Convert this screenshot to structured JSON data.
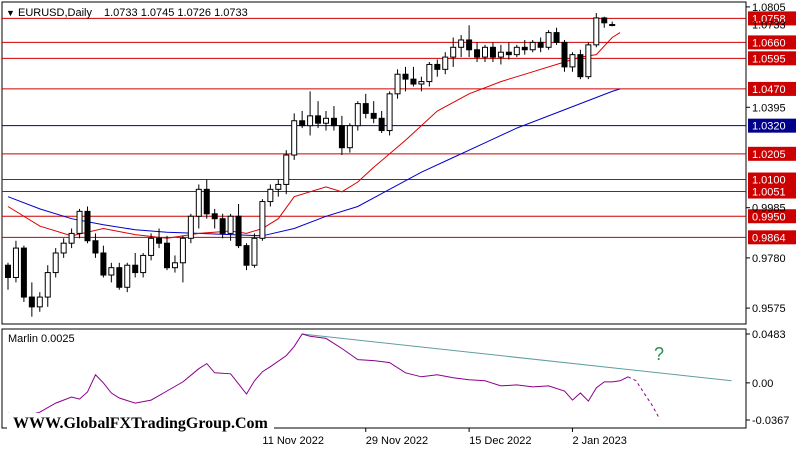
{
  "header": {
    "symbol": "EURUSD,Daily",
    "ohlc": "1.0733 1.0745 1.0726 1.0733"
  },
  "watermark": "WWW.GlobalFXTradingGroup.Com",
  "indicator": {
    "label": "Marlin 0.0025",
    "question_mark": "?",
    "y_ticks": [
      "0.0483",
      "0.00",
      "-0.0367"
    ],
    "range": [
      -0.0367,
      0.0483
    ]
  },
  "colors": {
    "background": "#ffffff",
    "bull_candle": "#ffffff",
    "bear_candle": "#000000",
    "red_level": "#cc0000",
    "blue_level": "#00008b",
    "ma_fast": "#dd0000",
    "ma_slow": "#0000cc",
    "marlin": "#8b008b",
    "trendline": "#5f9ea0",
    "question_mark": "#2e8b57"
  },
  "chart_data": {
    "type": "candlestick",
    "ylim": [
      0.951,
      1.0825
    ],
    "y_ticks": [
      "1.0805",
      "1.0395",
      "0.9985",
      "0.9780",
      "0.9575"
    ],
    "x_ticks": [
      "11 Nov 2022",
      "29 Nov 2022",
      "15 Dec 2022",
      "2 Jan 2023"
    ],
    "x_tick_index": [
      32,
      45,
      58,
      71
    ],
    "levels": [
      {
        "price": 1.0758,
        "label": "1.0758",
        "color": "red"
      },
      {
        "price": 1.066,
        "label": "1.0660",
        "color": "red"
      },
      {
        "price": 1.0595,
        "label": "1.0595",
        "color": "red"
      },
      {
        "price": 1.047,
        "label": "1.0470",
        "color": "red"
      },
      {
        "price": 1.032,
        "label": "1.0320",
        "color": "blue"
      },
      {
        "price": 1.0205,
        "label": "1.0205",
        "color": "red"
      },
      {
        "price": 1.01,
        "label": "1.0100",
        "color": "red"
      },
      {
        "price": 1.0051,
        "label": "1.0051",
        "color": "red"
      },
      {
        "price": 0.995,
        "label": "0.9950",
        "color": "red"
      },
      {
        "price": 0.9864,
        "label": "0.9864",
        "color": "red"
      }
    ],
    "current_price": "1.0733",
    "candles": [
      [
        0.975,
        0.976,
        0.965,
        0.97
      ],
      [
        0.97,
        0.985,
        0.968,
        0.982
      ],
      [
        0.982,
        0.983,
        0.96,
        0.962
      ],
      [
        0.962,
        0.968,
        0.954,
        0.958
      ],
      [
        0.958,
        0.964,
        0.956,
        0.962
      ],
      [
        0.962,
        0.975,
        0.958,
        0.972
      ],
      [
        0.972,
        0.982,
        0.97,
        0.98
      ],
      [
        0.98,
        0.986,
        0.978,
        0.984
      ],
      [
        0.984,
        0.99,
        0.982,
        0.988
      ],
      [
        0.988,
        0.998,
        0.986,
        0.997
      ],
      [
        0.997,
        0.999,
        0.984,
        0.985
      ],
      [
        0.985,
        0.988,
        0.978,
        0.98
      ],
      [
        0.98,
        0.983,
        0.97,
        0.971
      ],
      [
        0.971,
        0.976,
        0.968,
        0.974
      ],
      [
        0.974,
        0.976,
        0.965,
        0.966
      ],
      [
        0.966,
        0.976,
        0.964,
        0.975
      ],
      [
        0.975,
        0.98,
        0.97,
        0.972
      ],
      [
        0.972,
        0.98,
        0.97,
        0.979
      ],
      [
        0.979,
        0.988,
        0.977,
        0.986
      ],
      [
        0.986,
        0.99,
        0.982,
        0.984
      ],
      [
        0.984,
        0.987,
        0.973,
        0.974
      ],
      [
        0.974,
        0.979,
        0.972,
        0.976
      ],
      [
        0.976,
        0.987,
        0.968,
        0.986
      ],
      [
        0.986,
        0.996,
        0.984,
        0.995
      ],
      [
        0.995,
        1.008,
        0.99,
        1.006
      ],
      [
        1.006,
        1.01,
        0.994,
        0.996
      ],
      [
        0.996,
        0.998,
        0.99,
        0.994
      ],
      [
        0.994,
        0.996,
        0.986,
        0.988
      ],
      [
        0.988,
        0.996,
        0.985,
        0.995
      ],
      [
        0.995,
        1.0,
        0.982,
        0.983
      ],
      [
        0.983,
        0.984,
        0.973,
        0.975
      ],
      [
        0.975,
        0.988,
        0.974,
        0.986
      ],
      [
        0.986,
        1.002,
        0.985,
        1.001
      ],
      [
        1.001,
        1.008,
        0.999,
        1.006
      ],
      [
        1.006,
        1.01,
        1.003,
        1.008
      ],
      [
        1.008,
        1.022,
        1.004,
        1.02
      ],
      [
        1.02,
        1.037,
        1.018,
        1.034
      ],
      [
        1.034,
        1.038,
        1.031,
        1.032
      ],
      [
        1.032,
        1.046,
        1.028,
        1.036
      ],
      [
        1.036,
        1.042,
        1.031,
        1.033
      ],
      [
        1.033,
        1.038,
        1.03,
        1.035
      ],
      [
        1.035,
        1.04,
        1.03,
        1.032
      ],
      [
        1.032,
        1.036,
        1.02,
        1.023
      ],
      [
        1.023,
        1.033,
        1.021,
        1.032
      ],
      [
        1.032,
        1.042,
        1.03,
        1.041
      ],
      [
        1.041,
        1.045,
        1.035,
        1.037
      ],
      [
        1.037,
        1.042,
        1.033,
        1.035
      ],
      [
        1.035,
        1.038,
        1.029,
        1.03
      ],
      [
        1.03,
        1.046,
        1.028,
        1.045
      ],
      [
        1.045,
        1.055,
        1.043,
        1.053
      ],
      [
        1.053,
        1.056,
        1.046,
        1.051
      ],
      [
        1.051,
        1.056,
        1.048,
        1.049
      ],
      [
        1.049,
        1.052,
        1.046,
        1.05
      ],
      [
        1.05,
        1.058,
        1.048,
        1.057
      ],
      [
        1.057,
        1.059,
        1.052,
        1.055
      ],
      [
        1.055,
        1.062,
        1.053,
        1.06
      ],
      [
        1.06,
        1.068,
        1.056,
        1.064
      ],
      [
        1.064,
        1.069,
        1.06,
        1.067
      ],
      [
        1.067,
        1.073,
        1.06,
        1.063
      ],
      [
        1.063,
        1.066,
        1.058,
        1.06
      ],
      [
        1.06,
        1.065,
        1.058,
        1.064
      ],
      [
        1.064,
        1.066,
        1.058,
        1.06
      ],
      [
        1.06,
        1.065,
        1.057,
        1.062
      ],
      [
        1.062,
        1.066,
        1.059,
        1.061
      ],
      [
        1.061,
        1.065,
        1.06,
        1.064
      ],
      [
        1.064,
        1.067,
        1.061,
        1.063
      ],
      [
        1.063,
        1.067,
        1.062,
        1.066
      ],
      [
        1.066,
        1.068,
        1.062,
        1.064
      ],
      [
        1.064,
        1.071,
        1.063,
        1.07
      ],
      [
        1.07,
        1.072,
        1.065,
        1.066
      ],
      [
        1.066,
        1.067,
        1.054,
        1.056
      ],
      [
        1.056,
        1.062,
        1.054,
        1.061
      ],
      [
        1.061,
        1.063,
        1.051,
        1.052
      ],
      [
        1.052,
        1.066,
        1.051,
        1.065
      ],
      [
        1.065,
        1.078,
        1.064,
        1.076
      ],
      [
        1.076,
        1.0765,
        1.072,
        1.074
      ],
      [
        1.0733,
        1.0745,
        1.0726,
        1.0733
      ]
    ],
    "ma_fast": [
      [
        0,
        0.999
      ],
      [
        4,
        0.991
      ],
      [
        8,
        0.987
      ],
      [
        12,
        0.99
      ],
      [
        16,
        0.9875
      ],
      [
        20,
        0.986
      ],
      [
        24,
        0.988
      ],
      [
        28,
        0.989
      ],
      [
        30,
        0.988
      ],
      [
        32,
        0.99
      ],
      [
        34,
        0.994
      ],
      [
        36,
        1.003
      ],
      [
        40,
        1.007
      ],
      [
        42,
        1.005
      ],
      [
        44,
        1.009
      ],
      [
        46,
        1.015
      ],
      [
        50,
        1.026
      ],
      [
        54,
        1.038
      ],
      [
        58,
        1.045
      ],
      [
        62,
        1.05
      ],
      [
        66,
        1.054
      ],
      [
        70,
        1.058
      ],
      [
        72,
        1.06
      ],
      [
        74,
        1.061
      ],
      [
        76,
        1.068
      ],
      [
        77,
        1.07
      ]
    ],
    "ma_slow": [
      [
        0,
        1.003
      ],
      [
        4,
        0.998
      ],
      [
        8,
        0.994
      ],
      [
        12,
        0.9915
      ],
      [
        16,
        0.9895
      ],
      [
        20,
        0.9885
      ],
      [
        24,
        0.988
      ],
      [
        28,
        0.9875
      ],
      [
        32,
        0.987
      ],
      [
        36,
        0.99
      ],
      [
        40,
        0.995
      ],
      [
        44,
        0.999
      ],
      [
        48,
        1.006
      ],
      [
        52,
        1.013
      ],
      [
        56,
        1.019
      ],
      [
        60,
        1.025
      ],
      [
        64,
        1.031
      ],
      [
        68,
        1.036
      ],
      [
        72,
        1.041
      ],
      [
        76,
        1.046
      ],
      [
        77,
        1.047
      ]
    ],
    "marlin": [
      [
        0,
        -0.03
      ],
      [
        2,
        -0.033
      ],
      [
        4,
        -0.029
      ],
      [
        6,
        -0.02
      ],
      [
        8,
        -0.014
      ],
      [
        9,
        -0.016
      ],
      [
        10,
        -0.009
      ],
      [
        11,
        0.008
      ],
      [
        12,
        0.0
      ],
      [
        13,
        -0.01
      ],
      [
        14,
        -0.015
      ],
      [
        16,
        -0.02
      ],
      [
        18,
        -0.017
      ],
      [
        20,
        -0.008
      ],
      [
        22,
        0.001
      ],
      [
        24,
        0.014
      ],
      [
        25,
        0.019
      ],
      [
        26,
        0.01
      ],
      [
        28,
        0.009
      ],
      [
        30,
        -0.011
      ],
      [
        31,
        0.002
      ],
      [
        32,
        0.011
      ],
      [
        33,
        0.016
      ],
      [
        35,
        0.027
      ],
      [
        36,
        0.036
      ],
      [
        37,
        0.0483
      ],
      [
        38,
        0.046
      ],
      [
        40,
        0.044
      ],
      [
        42,
        0.034
      ],
      [
        44,
        0.023
      ],
      [
        46,
        0.022
      ],
      [
        48,
        0.02
      ],
      [
        50,
        0.01
      ],
      [
        52,
        0.006
      ],
      [
        54,
        0.008
      ],
      [
        56,
        0.005
      ],
      [
        58,
        0.003
      ],
      [
        60,
        0.002
      ],
      [
        62,
        -0.003
      ],
      [
        64,
        -0.002
      ],
      [
        66,
        -0.004
      ],
      [
        68,
        -0.003
      ],
      [
        70,
        -0.008
      ],
      [
        71,
        -0.017
      ],
      [
        72,
        -0.01
      ],
      [
        73,
        -0.018
      ],
      [
        74,
        -0.005
      ],
      [
        75,
        0.001
      ],
      [
        76,
        0.001
      ],
      [
        77,
        0.002
      ],
      [
        78,
        0.006
      ]
    ],
    "marlin_projection": [
      [
        78,
        0.006
      ],
      [
        79,
        0.002
      ],
      [
        80,
        -0.01
      ],
      [
        81,
        -0.022
      ],
      [
        82,
        -0.036
      ]
    ],
    "trendline": [
      [
        37,
        0.0483
      ],
      [
        91,
        0.002
      ]
    ]
  }
}
